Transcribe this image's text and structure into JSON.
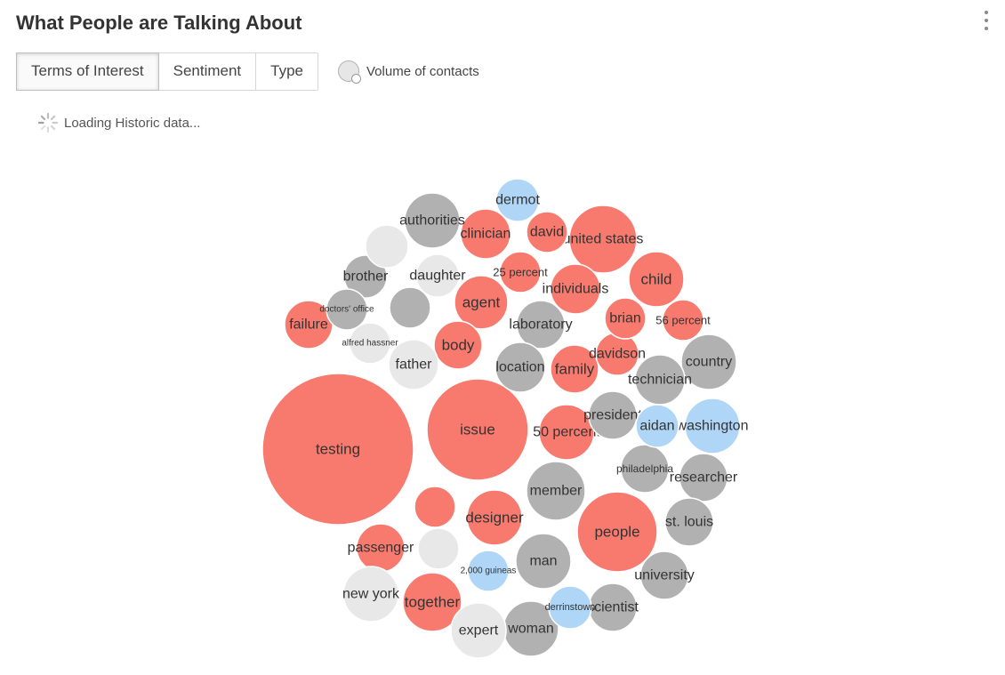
{
  "header": {
    "title": "What People are Talking About",
    "menu_icon": "more-vertical-icon"
  },
  "tabs": [
    {
      "label": "Terms of Interest",
      "active": true
    },
    {
      "label": "Sentiment",
      "active": false
    },
    {
      "label": "Type",
      "active": false
    }
  ],
  "legend": {
    "icon": "volume-circles-icon",
    "label": "Volume of contacts"
  },
  "loading": {
    "icon": "spinner-icon",
    "text": "Loading Historic data..."
  },
  "colors": {
    "red": "#f87a6e",
    "gray": "#b1b1b1",
    "light": "#e8e8e8",
    "blue": "#afd6f6"
  },
  "bubbles": [
    {
      "label": "testing",
      "color": "red"
    },
    {
      "label": "issue",
      "color": "red"
    },
    {
      "label": "people",
      "color": "red"
    },
    {
      "label": "united states",
      "color": "red"
    },
    {
      "label": "child",
      "color": "red"
    },
    {
      "label": "individuals",
      "color": "red"
    },
    {
      "label": "clinician",
      "color": "red"
    },
    {
      "label": "agent",
      "color": "red"
    },
    {
      "label": "designer",
      "color": "red"
    },
    {
      "label": "together",
      "color": "red"
    },
    {
      "label": "family",
      "color": "red"
    },
    {
      "label": "50 percent",
      "color": "red"
    },
    {
      "label": "body",
      "color": "red"
    },
    {
      "label": "passenger",
      "color": "red"
    },
    {
      "label": "failure",
      "color": "red"
    },
    {
      "label": "davidson",
      "color": "red"
    },
    {
      "label": "brian",
      "color": "red"
    },
    {
      "label": "25 percent",
      "color": "red"
    },
    {
      "label": "56 percent",
      "color": "red"
    },
    {
      "label": "david",
      "color": "red"
    },
    {
      "label": "",
      "color": "red"
    },
    {
      "label": "authorities",
      "color": "gray"
    },
    {
      "label": "member",
      "color": "gray"
    },
    {
      "label": "man",
      "color": "gray"
    },
    {
      "label": "woman",
      "color": "gray"
    },
    {
      "label": "country",
      "color": "gray"
    },
    {
      "label": "technician",
      "color": "gray"
    },
    {
      "label": "university",
      "color": "gray"
    },
    {
      "label": "researcher",
      "color": "gray"
    },
    {
      "label": "laboratory",
      "color": "gray"
    },
    {
      "label": "location",
      "color": "gray"
    },
    {
      "label": "st. louis",
      "color": "gray"
    },
    {
      "label": "philadelphia",
      "color": "gray"
    },
    {
      "label": "president",
      "color": "gray"
    },
    {
      "label": "scientist",
      "color": "gray"
    },
    {
      "label": "brother",
      "color": "gray"
    },
    {
      "label": "doctors' office",
      "color": "gray"
    },
    {
      "label": "",
      "color": "gray"
    },
    {
      "label": "new york",
      "color": "light"
    },
    {
      "label": "expert",
      "color": "light"
    },
    {
      "label": "father",
      "color": "light"
    },
    {
      "label": "daughter",
      "color": "light"
    },
    {
      "label": "alfred hassner",
      "color": "light"
    },
    {
      "label": "",
      "color": "light"
    },
    {
      "label": "",
      "color": "light"
    },
    {
      "label": "washington",
      "color": "blue"
    },
    {
      "label": "aidan",
      "color": "blue"
    },
    {
      "label": "dermot",
      "color": "blue"
    },
    {
      "label": "2,000 guineas",
      "color": "blue"
    },
    {
      "label": "derrinstown",
      "color": "blue"
    }
  ]
}
